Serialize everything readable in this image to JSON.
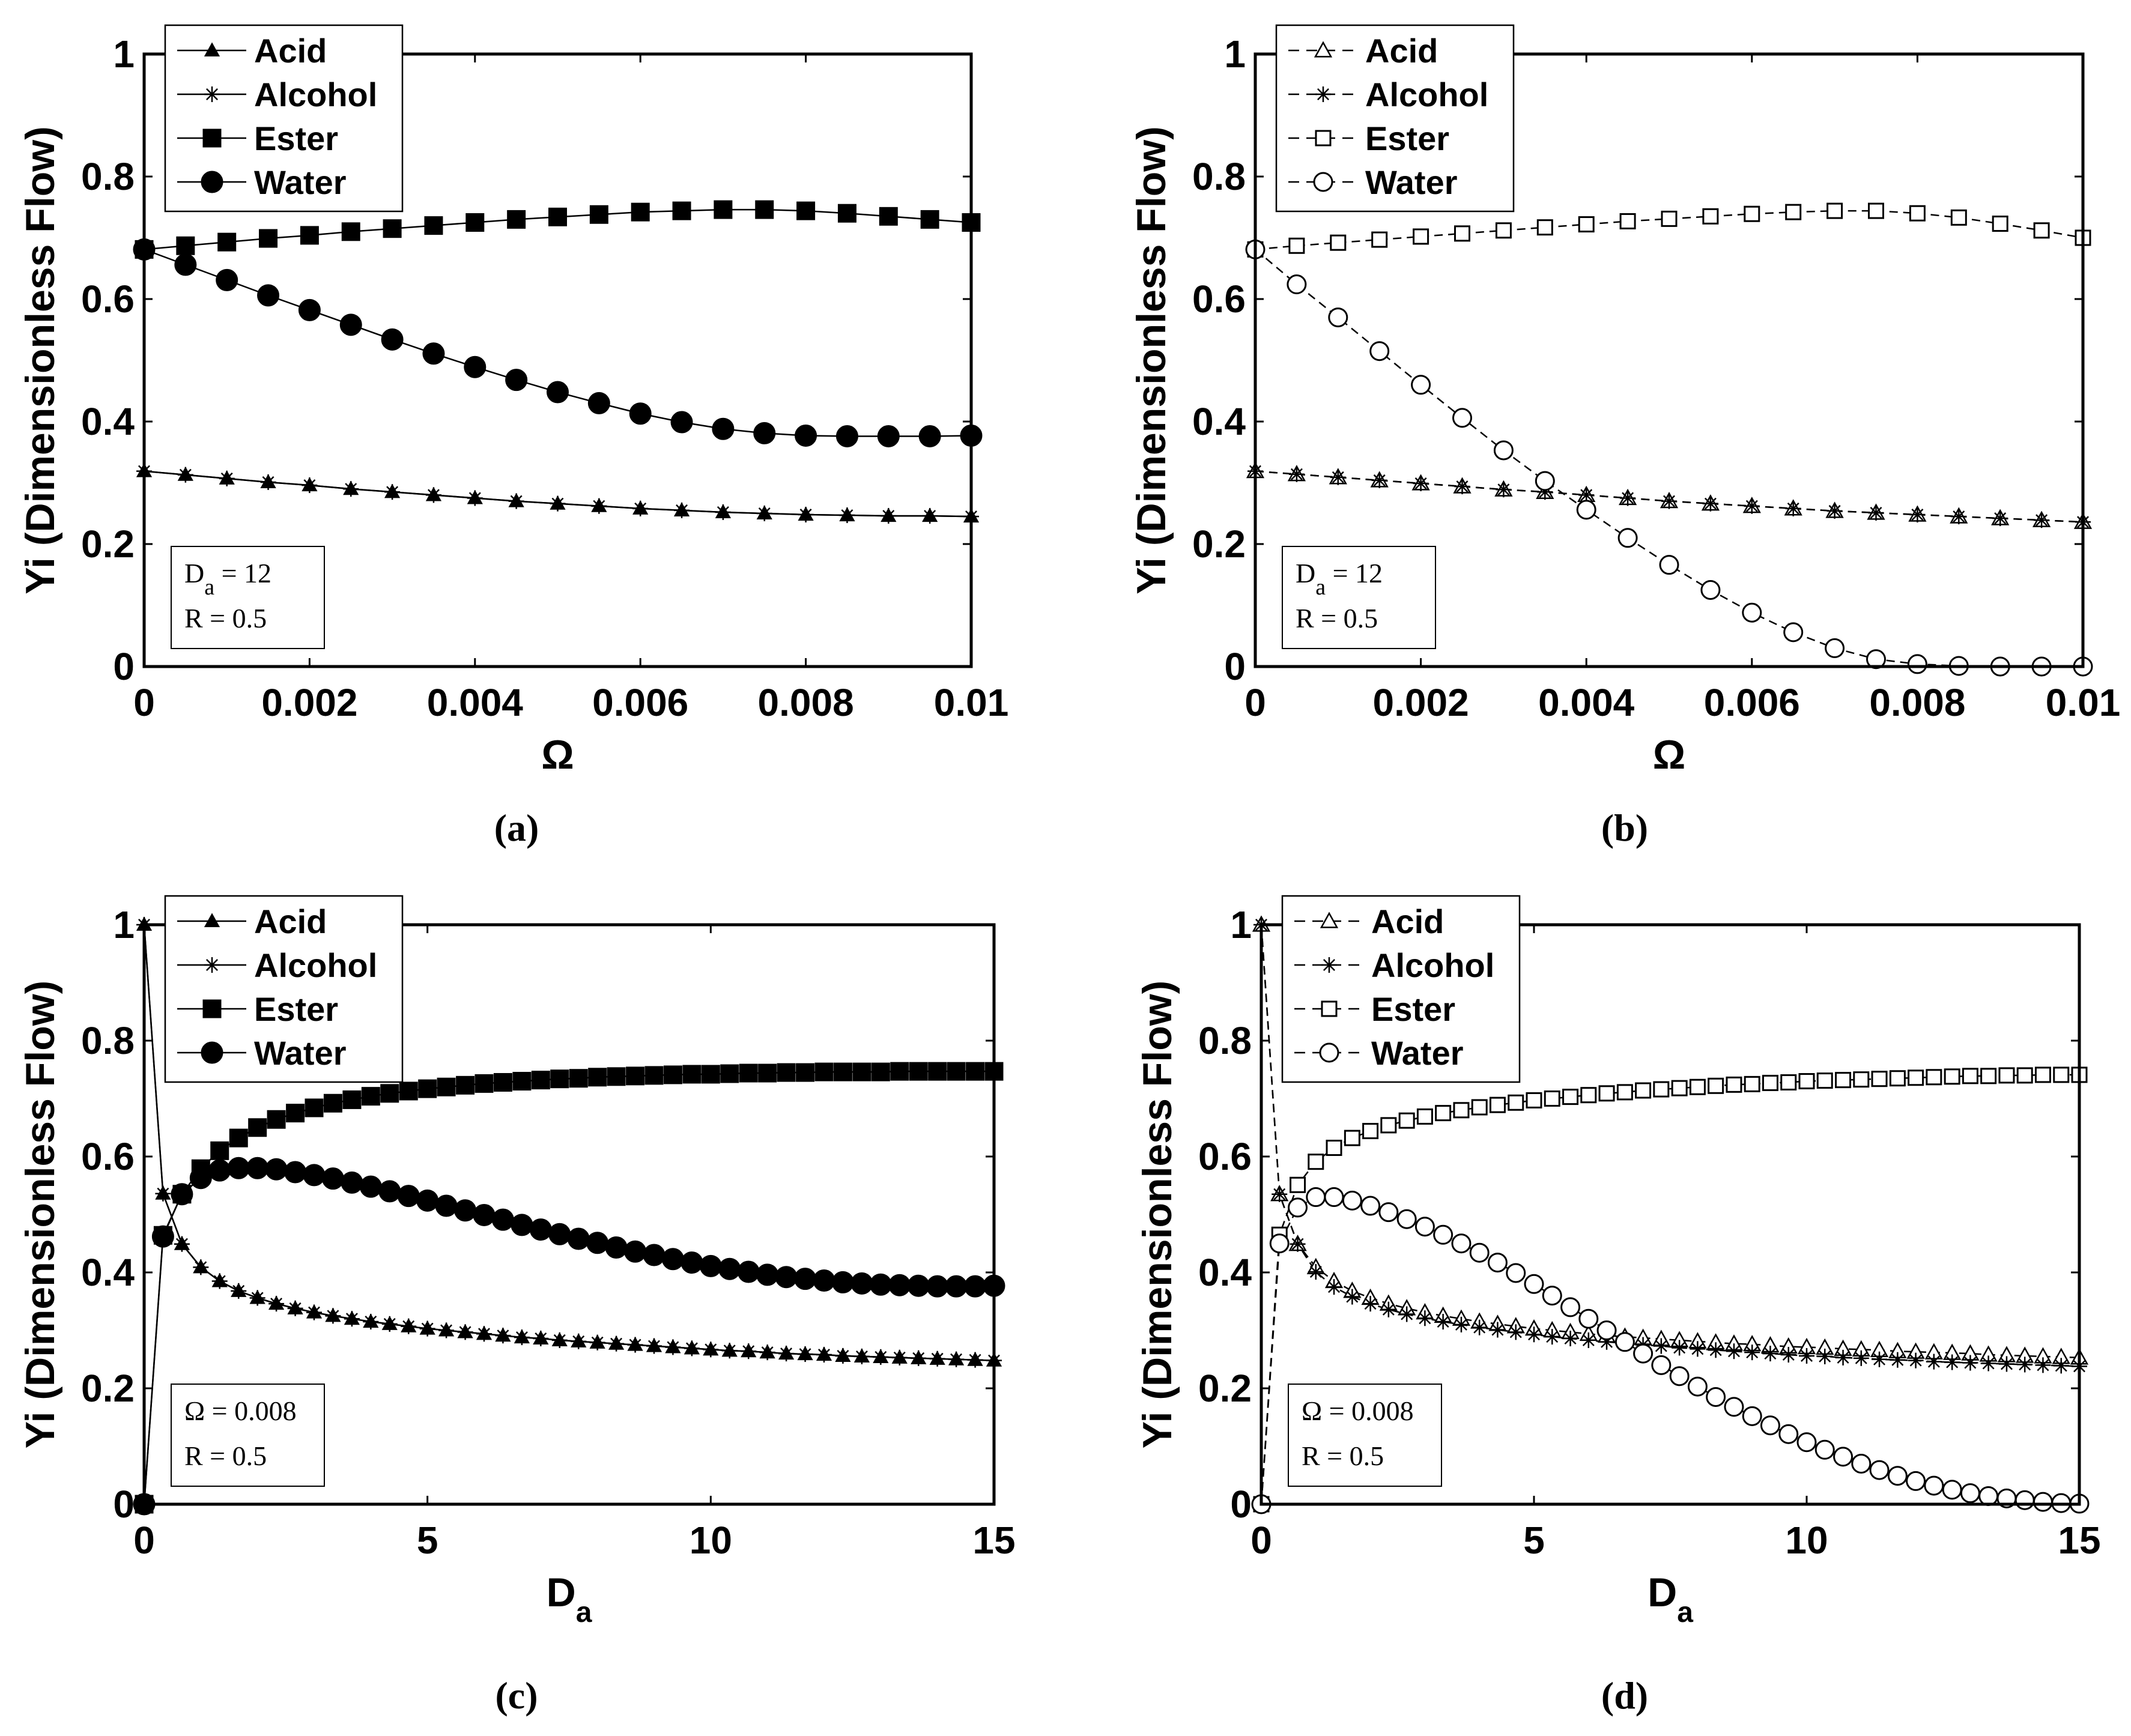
{
  "figure": {
    "captions": [
      "(a)",
      "(b)",
      "(c)",
      "(d)"
    ]
  },
  "chart_data": [
    {
      "id": "a",
      "type": "line",
      "caption": "(a)",
      "ylabel": "Yi (Dimensionless Flow)",
      "xlabel": "Ω",
      "xlabel_sub": "",
      "xlim": [
        0,
        0.01
      ],
      "ylim": [
        0,
        1
      ],
      "xticks": [
        0,
        0.002,
        0.004,
        0.006,
        0.008,
        0.01
      ],
      "xtick_labels": [
        "0",
        "0.002",
        "0.004",
        "0.006",
        "0.008",
        "0.01"
      ],
      "yticks": [
        0,
        0.2,
        0.4,
        0.6,
        0.8,
        1
      ],
      "ytick_labels": [
        "0",
        "0.2",
        "0.4",
        "0.6",
        "0.8",
        "1"
      ],
      "line_style": "solid",
      "filled_markers": true,
      "legend": [
        "Acid",
        "Alcohol",
        "Ester",
        "Water"
      ],
      "legend_position": "top-left",
      "annotation": {
        "lines": [
          {
            "main": "D",
            "sub": "a",
            "rest": " = 12"
          },
          {
            "main": "R = 0.5",
            "sub": "",
            "rest": ""
          }
        ],
        "position": "bottom-left"
      },
      "x": [
        0,
        0.0005,
        0.001,
        0.0015,
        0.002,
        0.0025,
        0.003,
        0.0035,
        0.004,
        0.0045,
        0.005,
        0.0055,
        0.006,
        0.0065,
        0.007,
        0.0075,
        0.008,
        0.0085,
        0.009,
        0.0095,
        0.01
      ],
      "series": [
        {
          "name": "Acid",
          "marker": "triangle",
          "values": [
            0.319,
            0.313,
            0.307,
            0.301,
            0.296,
            0.29,
            0.285,
            0.28,
            0.275,
            0.27,
            0.266,
            0.262,
            0.258,
            0.255,
            0.252,
            0.25,
            0.248,
            0.247,
            0.246,
            0.246,
            0.245
          ]
        },
        {
          "name": "Alcohol",
          "marker": "star",
          "values": [
            0.319,
            0.313,
            0.307,
            0.301,
            0.296,
            0.29,
            0.285,
            0.28,
            0.275,
            0.27,
            0.266,
            0.262,
            0.258,
            0.255,
            0.252,
            0.25,
            0.248,
            0.247,
            0.246,
            0.246,
            0.245
          ]
        },
        {
          "name": "Ester",
          "marker": "square",
          "values": [
            0.681,
            0.687,
            0.693,
            0.699,
            0.704,
            0.71,
            0.715,
            0.72,
            0.725,
            0.73,
            0.734,
            0.738,
            0.742,
            0.744,
            0.746,
            0.746,
            0.744,
            0.74,
            0.735,
            0.73,
            0.725
          ]
        },
        {
          "name": "Water",
          "marker": "circle",
          "values": [
            0.681,
            0.656,
            0.631,
            0.606,
            0.582,
            0.558,
            0.534,
            0.511,
            0.489,
            0.468,
            0.448,
            0.43,
            0.413,
            0.399,
            0.388,
            0.381,
            0.377,
            0.376,
            0.376,
            0.376,
            0.377
          ]
        }
      ]
    },
    {
      "id": "b",
      "type": "line",
      "caption": "(b)",
      "ylabel": "Yi (Dimensionless Flow)",
      "xlabel": "Ω",
      "xlabel_sub": "",
      "xlim": [
        0,
        0.01
      ],
      "ylim": [
        0,
        1
      ],
      "xticks": [
        0,
        0.002,
        0.004,
        0.006,
        0.008,
        0.01
      ],
      "xtick_labels": [
        "0",
        "0.002",
        "0.004",
        "0.006",
        "0.008",
        "0.01"
      ],
      "yticks": [
        0,
        0.2,
        0.4,
        0.6,
        0.8,
        1
      ],
      "ytick_labels": [
        "0",
        "0.2",
        "0.4",
        "0.6",
        "0.8",
        "1"
      ],
      "line_style": "dashed",
      "filled_markers": false,
      "legend": [
        "Acid",
        "Alcohol",
        "Ester",
        "Water"
      ],
      "legend_position": "top-left",
      "annotation": {
        "lines": [
          {
            "main": "D",
            "sub": "a",
            "rest": " = 12"
          },
          {
            "main": "R = 0.5",
            "sub": "",
            "rest": ""
          }
        ],
        "position": "bottom-left"
      },
      "x": [
        0,
        0.0005,
        0.001,
        0.0015,
        0.002,
        0.0025,
        0.003,
        0.0035,
        0.004,
        0.0045,
        0.005,
        0.0055,
        0.006,
        0.0065,
        0.007,
        0.0075,
        0.008,
        0.0085,
        0.009,
        0.0095,
        0.01
      ],
      "series": [
        {
          "name": "Acid",
          "marker": "triangle",
          "values": [
            0.319,
            0.314,
            0.309,
            0.304,
            0.299,
            0.294,
            0.289,
            0.285,
            0.28,
            0.275,
            0.27,
            0.266,
            0.262,
            0.258,
            0.254,
            0.251,
            0.248,
            0.245,
            0.242,
            0.239,
            0.236
          ]
        },
        {
          "name": "Alcohol",
          "marker": "star",
          "values": [
            0.319,
            0.314,
            0.309,
            0.304,
            0.299,
            0.294,
            0.289,
            0.285,
            0.28,
            0.275,
            0.27,
            0.266,
            0.262,
            0.258,
            0.254,
            0.251,
            0.248,
            0.245,
            0.242,
            0.239,
            0.236
          ]
        },
        {
          "name": "Ester",
          "marker": "square",
          "values": [
            0.681,
            0.687,
            0.692,
            0.697,
            0.702,
            0.707,
            0.712,
            0.717,
            0.722,
            0.727,
            0.731,
            0.735,
            0.739,
            0.742,
            0.744,
            0.744,
            0.74,
            0.733,
            0.723,
            0.712,
            0.7
          ]
        },
        {
          "name": "Water",
          "marker": "circle",
          "values": [
            0.681,
            0.624,
            0.57,
            0.515,
            0.46,
            0.406,
            0.353,
            0.303,
            0.256,
            0.21,
            0.166,
            0.125,
            0.088,
            0.056,
            0.03,
            0.012,
            0.004,
            0.001,
            0.0,
            0.0,
            0.0
          ]
        }
      ]
    },
    {
      "id": "c",
      "type": "line",
      "caption": "(c)",
      "ylabel": "Yi (Dimensionless Flow)",
      "xlabel": "D",
      "xlabel_sub": "a",
      "xlim": [
        0,
        15
      ],
      "ylim": [
        0,
        1
      ],
      "xticks": [
        0,
        5,
        10,
        15
      ],
      "xtick_labels": [
        "0",
        "5",
        "10",
        "15"
      ],
      "yticks": [
        0,
        0.2,
        0.4,
        0.6,
        0.8,
        1
      ],
      "ytick_labels": [
        "0",
        "0.2",
        "0.4",
        "0.6",
        "0.8",
        "1"
      ],
      "line_style": "solid",
      "filled_markers": true,
      "legend": [
        "Acid",
        "Alcohol",
        "Ester",
        "Water"
      ],
      "legend_position": "top-left",
      "annotation": {
        "lines": [
          {
            "main": "Ω = 0.008",
            "sub": "",
            "rest": ""
          },
          {
            "main": "R = 0.5",
            "sub": "",
            "rest": ""
          }
        ],
        "position": "bottom-left"
      },
      "x": [
        0,
        0.333,
        0.667,
        1.0,
        1.333,
        1.667,
        2.0,
        2.333,
        2.667,
        3.0,
        3.333,
        3.667,
        4.0,
        4.333,
        4.667,
        5.0,
        5.333,
        5.667,
        6.0,
        6.333,
        6.667,
        7.0,
        7.333,
        7.667,
        8.0,
        8.333,
        8.667,
        9.0,
        9.333,
        9.667,
        10.0,
        10.333,
        10.667,
        11.0,
        11.333,
        11.667,
        12.0,
        12.333,
        12.667,
        13.0,
        13.333,
        13.667,
        14.0,
        14.333,
        14.667,
        15.0
      ],
      "series": [
        {
          "name": "Acid",
          "marker": "triangle",
          "values": [
            1.0,
            0.536,
            0.449,
            0.409,
            0.385,
            0.368,
            0.356,
            0.346,
            0.338,
            0.331,
            0.325,
            0.32,
            0.315,
            0.311,
            0.307,
            0.303,
            0.3,
            0.297,
            0.294,
            0.291,
            0.288,
            0.286,
            0.283,
            0.281,
            0.279,
            0.277,
            0.275,
            0.273,
            0.271,
            0.269,
            0.267,
            0.265,
            0.264,
            0.262,
            0.26,
            0.259,
            0.258,
            0.256,
            0.255,
            0.254,
            0.253,
            0.252,
            0.251,
            0.25,
            0.249,
            0.248
          ]
        },
        {
          "name": "Alcohol",
          "marker": "star",
          "values": [
            1.0,
            0.536,
            0.449,
            0.409,
            0.385,
            0.368,
            0.356,
            0.346,
            0.338,
            0.331,
            0.325,
            0.32,
            0.315,
            0.311,
            0.307,
            0.303,
            0.3,
            0.297,
            0.294,
            0.291,
            0.288,
            0.286,
            0.283,
            0.281,
            0.279,
            0.277,
            0.275,
            0.273,
            0.271,
            0.269,
            0.267,
            0.265,
            0.264,
            0.262,
            0.26,
            0.259,
            0.258,
            0.256,
            0.255,
            0.254,
            0.253,
            0.252,
            0.251,
            0.25,
            0.249,
            0.248
          ]
        },
        {
          "name": "Ester",
          "marker": "square",
          "values": [
            0.0,
            0.464,
            0.535,
            0.579,
            0.61,
            0.632,
            0.65,
            0.664,
            0.675,
            0.684,
            0.692,
            0.698,
            0.704,
            0.709,
            0.713,
            0.717,
            0.72,
            0.723,
            0.726,
            0.728,
            0.73,
            0.732,
            0.734,
            0.735,
            0.737,
            0.738,
            0.739,
            0.74,
            0.741,
            0.742,
            0.742,
            0.743,
            0.744,
            0.744,
            0.745,
            0.745,
            0.746,
            0.746,
            0.746,
            0.746,
            0.747,
            0.747,
            0.747,
            0.747,
            0.747,
            0.747
          ]
        },
        {
          "name": "Water",
          "marker": "circle",
          "values": [
            0.0,
            0.462,
            0.535,
            0.563,
            0.576,
            0.58,
            0.58,
            0.578,
            0.573,
            0.568,
            0.562,
            0.555,
            0.548,
            0.54,
            0.532,
            0.524,
            0.515,
            0.507,
            0.499,
            0.491,
            0.482,
            0.474,
            0.466,
            0.458,
            0.451,
            0.443,
            0.436,
            0.43,
            0.423,
            0.417,
            0.411,
            0.406,
            0.401,
            0.396,
            0.392,
            0.389,
            0.386,
            0.383,
            0.381,
            0.379,
            0.378,
            0.377,
            0.376,
            0.376,
            0.376,
            0.377
          ]
        }
      ]
    },
    {
      "id": "d",
      "type": "line",
      "caption": "(d)",
      "ylabel": "Yi (Dimensionless Flow)",
      "xlabel": "D",
      "xlabel_sub": "a",
      "xlim": [
        0,
        15
      ],
      "ylim": [
        0,
        1
      ],
      "xticks": [
        0,
        5,
        10,
        15
      ],
      "xtick_labels": [
        "0",
        "5",
        "10",
        "15"
      ],
      "yticks": [
        0,
        0.2,
        0.4,
        0.6,
        0.8,
        1
      ],
      "ytick_labels": [
        "0",
        "0.2",
        "0.4",
        "0.6",
        "0.8",
        "1"
      ],
      "line_style": "dashed",
      "filled_markers": false,
      "legend": [
        "Acid",
        "Alcohol",
        "Ester",
        "Water"
      ],
      "legend_position": "top-left",
      "annotation": {
        "lines": [
          {
            "main": "Ω = 0.008",
            "sub": "",
            "rest": ""
          },
          {
            "main": "R = 0.5",
            "sub": "",
            "rest": ""
          }
        ],
        "position": "bottom-left"
      },
      "x": [
        0,
        0.333,
        0.667,
        1.0,
        1.333,
        1.667,
        2.0,
        2.333,
        2.667,
        3.0,
        3.333,
        3.667,
        4.0,
        4.333,
        4.667,
        5.0,
        5.333,
        5.667,
        6.0,
        6.333,
        6.667,
        7.0,
        7.333,
        7.667,
        8.0,
        8.333,
        8.667,
        9.0,
        9.333,
        9.667,
        10.0,
        10.333,
        10.667,
        11.0,
        11.333,
        11.667,
        12.0,
        12.333,
        12.667,
        13.0,
        13.333,
        13.667,
        14.0,
        14.333,
        14.667,
        15.0
      ],
      "series": [
        {
          "name": "Acid",
          "marker": "triangle",
          "values": [
            1.0,
            0.535,
            0.449,
            0.409,
            0.385,
            0.368,
            0.356,
            0.346,
            0.338,
            0.331,
            0.325,
            0.32,
            0.315,
            0.311,
            0.307,
            0.303,
            0.3,
            0.297,
            0.294,
            0.291,
            0.289,
            0.287,
            0.285,
            0.283,
            0.281,
            0.279,
            0.277,
            0.276,
            0.274,
            0.272,
            0.271,
            0.27,
            0.268,
            0.267,
            0.266,
            0.264,
            0.263,
            0.262,
            0.261,
            0.26,
            0.258,
            0.257,
            0.256,
            0.255,
            0.254,
            0.253
          ]
        },
        {
          "name": "Alcohol",
          "marker": "star",
          "values": [
            1.0,
            0.535,
            0.449,
            0.401,
            0.375,
            0.358,
            0.346,
            0.336,
            0.328,
            0.321,
            0.315,
            0.31,
            0.305,
            0.301,
            0.297,
            0.293,
            0.289,
            0.286,
            0.283,
            0.28,
            0.278,
            0.275,
            0.273,
            0.27,
            0.268,
            0.266,
            0.264,
            0.262,
            0.26,
            0.258,
            0.256,
            0.255,
            0.253,
            0.252,
            0.25,
            0.249,
            0.248,
            0.246,
            0.245,
            0.244,
            0.243,
            0.242,
            0.241,
            0.24,
            0.239,
            0.238
          ]
        },
        {
          "name": "Ester",
          "marker": "square",
          "values": [
            0.0,
            0.465,
            0.551,
            0.591,
            0.615,
            0.632,
            0.644,
            0.654,
            0.662,
            0.669,
            0.675,
            0.68,
            0.685,
            0.689,
            0.693,
            0.697,
            0.7,
            0.703,
            0.706,
            0.709,
            0.711,
            0.714,
            0.716,
            0.718,
            0.72,
            0.722,
            0.724,
            0.725,
            0.727,
            0.728,
            0.73,
            0.731,
            0.732,
            0.733,
            0.734,
            0.735,
            0.736,
            0.737,
            0.738,
            0.739,
            0.739,
            0.74,
            0.74,
            0.741,
            0.741,
            0.741
          ]
        },
        {
          "name": "Water",
          "marker": "circle",
          "values": [
            0.0,
            0.45,
            0.512,
            0.53,
            0.53,
            0.524,
            0.515,
            0.504,
            0.492,
            0.479,
            0.465,
            0.45,
            0.434,
            0.417,
            0.399,
            0.38,
            0.36,
            0.34,
            0.32,
            0.3,
            0.28,
            0.26,
            0.24,
            0.221,
            0.203,
            0.185,
            0.168,
            0.152,
            0.136,
            0.121,
            0.107,
            0.094,
            0.082,
            0.07,
            0.059,
            0.049,
            0.04,
            0.032,
            0.025,
            0.019,
            0.014,
            0.01,
            0.007,
            0.004,
            0.002,
            0.001
          ]
        }
      ]
    }
  ]
}
